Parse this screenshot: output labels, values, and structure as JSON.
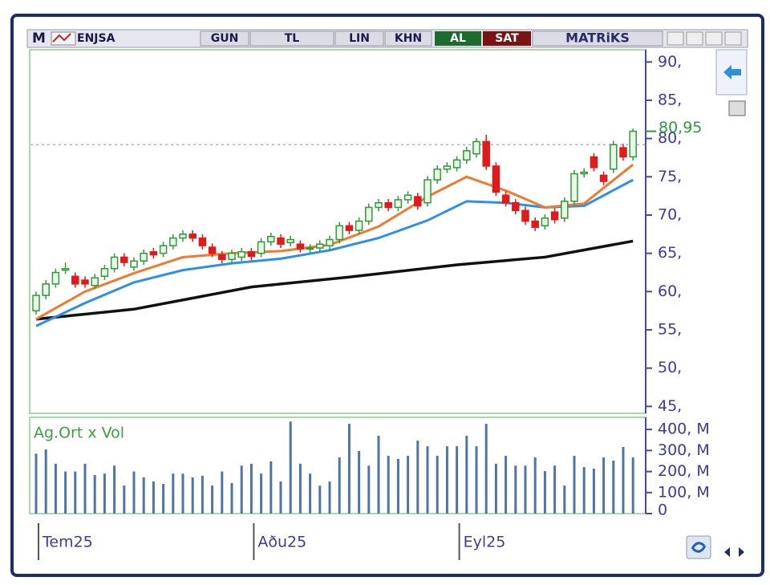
{
  "toolbar": {
    "menu": "M",
    "symbol": "ENJSA",
    "period": "GUN",
    "currency": "TL",
    "scale": "LIN",
    "khn": "KHN",
    "buy": "AL",
    "sell": "SAT",
    "brand": "MATRiKS"
  },
  "chart_data": [
    {
      "type": "candlestick",
      "categories": [
        "Tem25",
        null,
        null,
        null,
        null,
        null,
        null,
        null,
        null,
        null,
        null,
        null,
        null,
        null,
        null,
        null,
        null,
        null,
        null,
        null,
        null,
        null,
        "Aðu25",
        null,
        null,
        null,
        null,
        null,
        null,
        null,
        null,
        null,
        null,
        null,
        null,
        null,
        null,
        null,
        null,
        null,
        null,
        null,
        null,
        "Eyl25",
        null,
        null,
        null,
        null,
        null,
        null,
        null,
        null,
        null,
        null,
        null,
        null,
        null,
        null,
        null,
        null,
        null,
        null
      ],
      "open": [
        57.5,
        59.5,
        61,
        62.8,
        62,
        61.5,
        60.8,
        62,
        63,
        64.5,
        63.2,
        64,
        65.2,
        65,
        66,
        67,
        67.5,
        67,
        65.8,
        64.8,
        64.2,
        64.5,
        65.2,
        65,
        66.5,
        67,
        66.4,
        66.2,
        65.6,
        65.7,
        66,
        66.8,
        68.6,
        68,
        69.2,
        71,
        71.6,
        71,
        72,
        72.4,
        71.6,
        74.6,
        76,
        76.2,
        77.2,
        78,
        79.6,
        76.4,
        72.6,
        71.6,
        70.6,
        69.2,
        68.6,
        70.4,
        69.6,
        71.8,
        75.4,
        77.6,
        75.2,
        76,
        78.8,
        77.6
      ],
      "high": [
        60,
        61.5,
        63,
        63.8,
        62.5,
        62,
        62.3,
        63.5,
        65,
        65,
        64.5,
        65.5,
        65.7,
        66.5,
        67.5,
        68,
        68,
        67.5,
        66.3,
        65.3,
        65.5,
        65.7,
        65.7,
        67,
        67.7,
        67.5,
        67.3,
        66.7,
        66.2,
        66.7,
        67.3,
        69.1,
        69.1,
        69.7,
        71.5,
        72.1,
        72.1,
        72.5,
        73.1,
        72.9,
        75.1,
        76.5,
        76.9,
        77.7,
        78.9,
        80.1,
        80.5,
        76.9,
        73.1,
        72.1,
        71.1,
        69.7,
        70.1,
        70.9,
        72.3,
        75.9,
        76.1,
        78.1,
        75.7,
        79.7,
        79.3,
        81.3
      ],
      "low": [
        57,
        59,
        60.5,
        62.3,
        60.5,
        60.5,
        60.3,
        61.5,
        62.5,
        63.3,
        62.7,
        63.5,
        64.3,
        64.5,
        65.5,
        66.5,
        66.5,
        65.5,
        64.5,
        63.7,
        63.7,
        64,
        64.1,
        64.5,
        66,
        65.7,
        65.9,
        65.1,
        65.1,
        65.2,
        65.5,
        66.3,
        67.5,
        67.5,
        68.7,
        70.5,
        70.5,
        70.5,
        71.5,
        70.7,
        71.1,
        74.1,
        75.5,
        75.7,
        76.7,
        77.5,
        75.9,
        72.5,
        71.1,
        70.1,
        68.7,
        67.9,
        68.1,
        68.9,
        69.1,
        71.3,
        74.9,
        75.7,
        73.9,
        75.5,
        77.1,
        77.1
      ],
      "close": [
        59.5,
        61,
        62.5,
        63,
        61,
        61,
        61.8,
        63,
        64.5,
        63.8,
        64,
        65,
        64.8,
        66,
        67,
        67.5,
        67,
        66,
        65,
        64.2,
        65,
        65.2,
        64.6,
        66.5,
        67.2,
        66.2,
        66.8,
        65.6,
        65.7,
        66.2,
        66.8,
        68.6,
        68,
        69.2,
        71,
        71.6,
        71,
        72,
        72.6,
        71.2,
        74.6,
        76,
        76.4,
        77.2,
        78.4,
        79.6,
        76.4,
        73,
        71.6,
        70.6,
        69.2,
        68.4,
        69.6,
        69.4,
        71.8,
        75.4,
        75.6,
        76.2,
        74.4,
        79.2,
        77.6,
        80.95
      ],
      "up_color": "#2f9a3a",
      "down_color": "#e01b1b",
      "lines": [
        {
          "color": "#111111",
          "x": [
            0,
            10,
            22,
            32,
            43,
            52,
            61
          ],
          "values": [
            56.4,
            57.7,
            60.6,
            61.9,
            63.5,
            64.5,
            66.6
          ]
        },
        {
          "color": "#2e8fe6",
          "x": [
            0,
            5,
            10,
            15,
            20,
            25,
            30,
            35,
            40,
            44,
            48,
            52,
            56,
            61
          ],
          "values": [
            55.5,
            58.5,
            61.2,
            62.8,
            63.7,
            64.3,
            65.4,
            67,
            69.3,
            71.8,
            71.6,
            71,
            71.2,
            74.6
          ]
        },
        {
          "color": "#f07a30",
          "x": [
            0,
            5,
            10,
            15,
            20,
            25,
            30,
            35,
            40,
            44,
            48,
            52,
            56,
            61
          ],
          "values": [
            56.4,
            60,
            62.4,
            64.5,
            65,
            65.3,
            66.1,
            68.5,
            72.4,
            75,
            73.2,
            71,
            71.5,
            76.6
          ]
        }
      ],
      "reference_line": 79.2,
      "last_price": {
        "value": 80.95,
        "label": "80,95"
      },
      "ylim": [
        44.1,
        91.6
      ],
      "yticks": [
        {
          "value": 45,
          "label": "45,"
        },
        {
          "value": 50,
          "label": "50,"
        },
        {
          "value": 55,
          "label": "55,"
        },
        {
          "value": 60,
          "label": "60,"
        },
        {
          "value": 65,
          "label": "65,"
        },
        {
          "value": 70,
          "label": "70,"
        },
        {
          "value": 75,
          "label": "75,"
        },
        {
          "value": 80,
          "label": "80,"
        },
        {
          "value": 85,
          "label": "85,"
        },
        {
          "value": 90,
          "label": "90,"
        }
      ]
    },
    {
      "type": "bar",
      "title": "Ag.Ort x Vol",
      "color": "#4f74a8",
      "values": [
        285,
        305,
        237,
        200,
        200,
        237,
        183,
        190,
        228,
        133,
        200,
        172,
        153,
        141,
        190,
        190,
        172,
        180,
        133,
        200,
        145,
        228,
        237,
        190,
        248,
        153,
        438,
        237,
        190,
        133,
        153,
        267,
        427,
        298,
        228,
        370,
        275,
        260,
        275,
        347,
        320,
        275,
        320,
        320,
        370,
        320,
        427,
        237,
        275,
        228,
        228,
        267,
        202,
        228,
        133,
        275,
        221,
        214,
        267,
        252,
        317,
        267
      ],
      "ylim": [
        0,
        458
      ],
      "yticks": [
        0,
        {
          "value": 100,
          "label": "100, M"
        },
        {
          "value": 200,
          "label": "200, M"
        },
        {
          "value": 300,
          "label": "300, M"
        },
        {
          "value": 400,
          "label": "400, M"
        }
      ]
    }
  ]
}
